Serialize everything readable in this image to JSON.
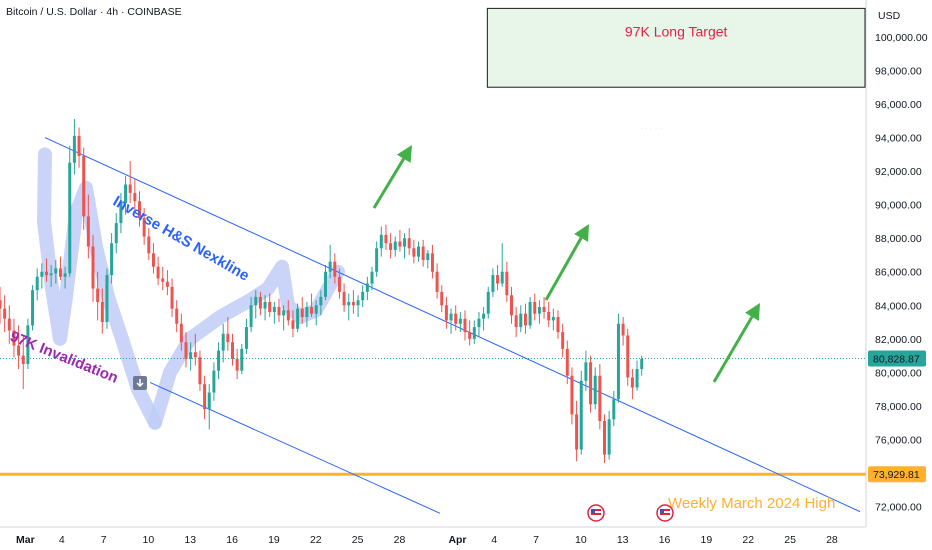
{
  "header": {
    "title": "Bitcoin / U.S. Dollar · 4h · COINBASE",
    "currency": "USD"
  },
  "price_badges": {
    "current": {
      "label": "80,828.87",
      "color": "#26a69a"
    },
    "support": {
      "label": "73,929.81",
      "color": "#ffb02e"
    }
  },
  "annotations": {
    "target": "97K Long Target",
    "nexkline": "Inverse H&S Nexkline",
    "invalidation": "97K Invalidation",
    "weekly": "Weekly March 2024 High"
  },
  "colors": {
    "up": "#26a69a",
    "down": "#ef5350",
    "trendline": "#2962ff",
    "support": "#ffb02e",
    "arrow": "#43b049",
    "target": "#e91e43",
    "nexkline": "#2962ff",
    "invalidation": "#9c27b0"
  },
  "icons": [
    "flag-icon",
    "flag-icon"
  ],
  "chart_data": {
    "type": "candlestick",
    "yaxis": {
      "ticks": [
        "100,000.00",
        "98,000.00",
        "96,000.00",
        "94,000.00",
        "92,000.00",
        "90,000.00",
        "88,000.00",
        "86,000.00",
        "84,000.00",
        "82,000.00",
        "80,000.00",
        "78,000.00",
        "76,000.00",
        "74,000.00",
        "72,000.00"
      ],
      "values": [
        100000,
        98000,
        96000,
        94000,
        92000,
        90000,
        88000,
        86000,
        84000,
        82000,
        80000,
        78000,
        76000,
        74000,
        72000
      ],
      "range": [
        71200,
        102200
      ]
    },
    "xaxis": {
      "ticks": [
        "Mar",
        "4",
        "7",
        "10",
        "13",
        "16",
        "19",
        "22",
        "25",
        "28",
        "Apr",
        "4",
        "7",
        "10",
        "13",
        "16",
        "19",
        "22",
        "25",
        "28"
      ],
      "bold": [
        "Mar",
        "Apr"
      ],
      "range": [
        "2025-03-01",
        "2025-04-29"
      ]
    },
    "current_price": 80828.87,
    "support_price": 73929.81,
    "target_zone": {
      "from_date": "2025-04-03",
      "to_date": "2025-04-30",
      "low": 97000,
      "high": 101700
    },
    "series": [
      {
        "o": 84300,
        "h": 85100,
        "l": 82900,
        "c": 83800
      },
      {
        "o": 83800,
        "h": 84600,
        "l": 82400,
        "c": 83200
      },
      {
        "o": 83200,
        "h": 84000,
        "l": 81700,
        "c": 82500
      },
      {
        "o": 82500,
        "h": 83200,
        "l": 80900,
        "c": 81600
      },
      {
        "o": 81600,
        "h": 82800,
        "l": 80200,
        "c": 81000
      },
      {
        "o": 81000,
        "h": 82200,
        "l": 79000,
        "c": 80500
      },
      {
        "o": 80500,
        "h": 83200,
        "l": 80200,
        "c": 82800
      },
      {
        "o": 82800,
        "h": 85200,
        "l": 82500,
        "c": 84900
      },
      {
        "o": 84900,
        "h": 86200,
        "l": 84300,
        "c": 85700
      },
      {
        "o": 85700,
        "h": 86500,
        "l": 85000,
        "c": 86000
      },
      {
        "o": 86000,
        "h": 86800,
        "l": 85400,
        "c": 85800
      },
      {
        "o": 85800,
        "h": 86400,
        "l": 85100,
        "c": 85900
      },
      {
        "o": 85900,
        "h": 86700,
        "l": 85300,
        "c": 86200
      },
      {
        "o": 86200,
        "h": 86900,
        "l": 85500,
        "c": 85700
      },
      {
        "o": 85700,
        "h": 86300,
        "l": 85000,
        "c": 85900
      },
      {
        "o": 85900,
        "h": 93500,
        "l": 85700,
        "c": 92500
      },
      {
        "o": 92500,
        "h": 95100,
        "l": 91800,
        "c": 94100
      },
      {
        "o": 94100,
        "h": 94600,
        "l": 92200,
        "c": 92900
      },
      {
        "o": 92900,
        "h": 93400,
        "l": 88500,
        "c": 89300
      },
      {
        "o": 89300,
        "h": 90600,
        "l": 86800,
        "c": 87500
      },
      {
        "o": 87500,
        "h": 88200,
        "l": 84200,
        "c": 85000
      },
      {
        "o": 85000,
        "h": 86000,
        "l": 83100,
        "c": 84200
      },
      {
        "o": 84200,
        "h": 85000,
        "l": 82300,
        "c": 83000
      },
      {
        "o": 83000,
        "h": 86200,
        "l": 82600,
        "c": 85800
      },
      {
        "o": 85800,
        "h": 88300,
        "l": 85300,
        "c": 87700
      },
      {
        "o": 87700,
        "h": 89500,
        "l": 87100,
        "c": 88900
      },
      {
        "o": 88900,
        "h": 90700,
        "l": 88300,
        "c": 90100
      },
      {
        "o": 90100,
        "h": 91700,
        "l": 89400,
        "c": 91200
      },
      {
        "o": 91200,
        "h": 92600,
        "l": 90100,
        "c": 90700
      },
      {
        "o": 90700,
        "h": 91500,
        "l": 89500,
        "c": 90200
      },
      {
        "o": 90200,
        "h": 90800,
        "l": 88700,
        "c": 89200
      },
      {
        "o": 89200,
        "h": 89800,
        "l": 87600,
        "c": 88100
      },
      {
        "o": 88100,
        "h": 88600,
        "l": 86700,
        "c": 87100
      },
      {
        "o": 87100,
        "h": 87700,
        "l": 85900,
        "c": 86300
      },
      {
        "o": 86300,
        "h": 86900,
        "l": 85200,
        "c": 85600
      },
      {
        "o": 85600,
        "h": 86300,
        "l": 84900,
        "c": 85400
      },
      {
        "o": 85400,
        "h": 86100,
        "l": 84600,
        "c": 85100
      },
      {
        "o": 85100,
        "h": 85600,
        "l": 83300,
        "c": 83800
      },
      {
        "o": 83800,
        "h": 84300,
        "l": 82400,
        "c": 82900
      },
      {
        "o": 82900,
        "h": 83500,
        "l": 81300,
        "c": 81800
      },
      {
        "o": 81800,
        "h": 82400,
        "l": 80300,
        "c": 80800
      },
      {
        "o": 80800,
        "h": 81800,
        "l": 80100,
        "c": 81200
      },
      {
        "o": 81200,
        "h": 82300,
        "l": 80400,
        "c": 80900
      },
      {
        "o": 80900,
        "h": 81300,
        "l": 78900,
        "c": 79300
      },
      {
        "o": 79300,
        "h": 79800,
        "l": 77200,
        "c": 77800
      },
      {
        "o": 77800,
        "h": 79300,
        "l": 76600,
        "c": 78800
      },
      {
        "o": 78800,
        "h": 80600,
        "l": 78300,
        "c": 80100
      },
      {
        "o": 80100,
        "h": 81800,
        "l": 79600,
        "c": 81300
      },
      {
        "o": 81300,
        "h": 82900,
        "l": 80600,
        "c": 82300
      },
      {
        "o": 82300,
        "h": 83300,
        "l": 81300,
        "c": 81800
      },
      {
        "o": 81800,
        "h": 82300,
        "l": 80400,
        "c": 80800
      },
      {
        "o": 80800,
        "h": 81400,
        "l": 79600,
        "c": 80100
      },
      {
        "o": 80100,
        "h": 81700,
        "l": 79900,
        "c": 81400
      },
      {
        "o": 81400,
        "h": 83200,
        "l": 81100,
        "c": 82700
      },
      {
        "o": 82700,
        "h": 84500,
        "l": 82400,
        "c": 84000
      },
      {
        "o": 84000,
        "h": 84900,
        "l": 83200,
        "c": 84500
      },
      {
        "o": 84500,
        "h": 84800,
        "l": 83400,
        "c": 83800
      },
      {
        "o": 83800,
        "h": 84600,
        "l": 83100,
        "c": 84200
      },
      {
        "o": 84200,
        "h": 84700,
        "l": 83300,
        "c": 83600
      },
      {
        "o": 83600,
        "h": 84200,
        "l": 82900,
        "c": 83900
      },
      {
        "o": 83900,
        "h": 84400,
        "l": 83000,
        "c": 83400
      },
      {
        "o": 83400,
        "h": 84000,
        "l": 82500,
        "c": 83700
      },
      {
        "o": 83700,
        "h": 84300,
        "l": 82800,
        "c": 83100
      },
      {
        "o": 83100,
        "h": 83700,
        "l": 82100,
        "c": 82600
      },
      {
        "o": 82600,
        "h": 84100,
        "l": 82400,
        "c": 83800
      },
      {
        "o": 83800,
        "h": 84500,
        "l": 82900,
        "c": 83300
      },
      {
        "o": 83300,
        "h": 84200,
        "l": 82700,
        "c": 83900
      },
      {
        "o": 83900,
        "h": 84700,
        "l": 83300,
        "c": 83500
      },
      {
        "o": 83500,
        "h": 84300,
        "l": 82800,
        "c": 84000
      },
      {
        "o": 84000,
        "h": 84900,
        "l": 83400,
        "c": 84500
      },
      {
        "o": 84500,
        "h": 86400,
        "l": 84300,
        "c": 86000
      },
      {
        "o": 86000,
        "h": 87600,
        "l": 85600,
        "c": 86600
      },
      {
        "o": 86600,
        "h": 87100,
        "l": 85300,
        "c": 85700
      },
      {
        "o": 85700,
        "h": 86200,
        "l": 84400,
        "c": 84800
      },
      {
        "o": 84800,
        "h": 85300,
        "l": 83600,
        "c": 84000
      },
      {
        "o": 84000,
        "h": 84700,
        "l": 83100,
        "c": 84200
      },
      {
        "o": 84200,
        "h": 84900,
        "l": 83500,
        "c": 84000
      },
      {
        "o": 84000,
        "h": 84600,
        "l": 83300,
        "c": 84300
      },
      {
        "o": 84300,
        "h": 85200,
        "l": 83900,
        "c": 84800
      },
      {
        "o": 84800,
        "h": 85700,
        "l": 84300,
        "c": 85300
      },
      {
        "o": 85300,
        "h": 86300,
        "l": 84900,
        "c": 86000
      },
      {
        "o": 86000,
        "h": 87800,
        "l": 85700,
        "c": 87400
      },
      {
        "o": 87400,
        "h": 88700,
        "l": 86900,
        "c": 88200
      },
      {
        "o": 88200,
        "h": 88800,
        "l": 87300,
        "c": 87700
      },
      {
        "o": 87700,
        "h": 88300,
        "l": 86800,
        "c": 87300
      },
      {
        "o": 87300,
        "h": 88100,
        "l": 86900,
        "c": 87800
      },
      {
        "o": 87800,
        "h": 88500,
        "l": 87200,
        "c": 87500
      },
      {
        "o": 87500,
        "h": 88300,
        "l": 86800,
        "c": 88000
      },
      {
        "o": 88000,
        "h": 88600,
        "l": 87000,
        "c": 87400
      },
      {
        "o": 87400,
        "h": 87900,
        "l": 86500,
        "c": 86900
      },
      {
        "o": 86900,
        "h": 87800,
        "l": 86600,
        "c": 87500
      },
      {
        "o": 87500,
        "h": 87900,
        "l": 86300,
        "c": 86700
      },
      {
        "o": 86700,
        "h": 87300,
        "l": 86200,
        "c": 87100
      },
      {
        "o": 87100,
        "h": 87600,
        "l": 85600,
        "c": 86000
      },
      {
        "o": 86000,
        "h": 86500,
        "l": 84400,
        "c": 84800
      },
      {
        "o": 84800,
        "h": 85200,
        "l": 83600,
        "c": 84000
      },
      {
        "o": 84000,
        "h": 84500,
        "l": 82600,
        "c": 83100
      },
      {
        "o": 83100,
        "h": 83800,
        "l": 82300,
        "c": 83500
      },
      {
        "o": 83500,
        "h": 84000,
        "l": 82500,
        "c": 82900
      },
      {
        "o": 82900,
        "h": 83600,
        "l": 82400,
        "c": 83200
      },
      {
        "o": 83200,
        "h": 83700,
        "l": 81900,
        "c": 82400
      },
      {
        "o": 82400,
        "h": 83100,
        "l": 81600,
        "c": 82000
      },
      {
        "o": 82000,
        "h": 83100,
        "l": 81700,
        "c": 82700
      },
      {
        "o": 82700,
        "h": 83600,
        "l": 82100,
        "c": 83200
      },
      {
        "o": 83200,
        "h": 83900,
        "l": 82500,
        "c": 83500
      },
      {
        "o": 83500,
        "h": 85100,
        "l": 83200,
        "c": 84800
      },
      {
        "o": 84800,
        "h": 86200,
        "l": 84500,
        "c": 85800
      },
      {
        "o": 85800,
        "h": 86400,
        "l": 84900,
        "c": 85300
      },
      {
        "o": 85300,
        "h": 87700,
        "l": 85100,
        "c": 86000
      },
      {
        "o": 86000,
        "h": 86600,
        "l": 84200,
        "c": 84600
      },
      {
        "o": 84600,
        "h": 85100,
        "l": 82900,
        "c": 83400
      },
      {
        "o": 83400,
        "h": 83900,
        "l": 82100,
        "c": 82700
      },
      {
        "o": 82700,
        "h": 84000,
        "l": 82400,
        "c": 83500
      },
      {
        "o": 83500,
        "h": 84100,
        "l": 82300,
        "c": 82800
      },
      {
        "o": 82800,
        "h": 84500,
        "l": 82600,
        "c": 84200
      },
      {
        "o": 84200,
        "h": 84700,
        "l": 83100,
        "c": 83500
      },
      {
        "o": 83500,
        "h": 84300,
        "l": 82900,
        "c": 83900
      },
      {
        "o": 83900,
        "h": 84500,
        "l": 83200,
        "c": 83600
      },
      {
        "o": 83600,
        "h": 84200,
        "l": 82700,
        "c": 83100
      },
      {
        "o": 83100,
        "h": 83800,
        "l": 82500,
        "c": 83300
      },
      {
        "o": 83300,
        "h": 83700,
        "l": 82000,
        "c": 82400
      },
      {
        "o": 82400,
        "h": 82900,
        "l": 80900,
        "c": 81400
      },
      {
        "o": 81400,
        "h": 81900,
        "l": 79300,
        "c": 79800
      },
      {
        "o": 79800,
        "h": 80300,
        "l": 76900,
        "c": 77500
      },
      {
        "o": 77500,
        "h": 78300,
        "l": 74700,
        "c": 75400
      },
      {
        "o": 75400,
        "h": 80100,
        "l": 75100,
        "c": 79500
      },
      {
        "o": 79500,
        "h": 81300,
        "l": 78900,
        "c": 80600
      },
      {
        "o": 80600,
        "h": 81000,
        "l": 77600,
        "c": 78100
      },
      {
        "o": 78100,
        "h": 80300,
        "l": 77800,
        "c": 79800
      },
      {
        "o": 79800,
        "h": 80500,
        "l": 76600,
        "c": 77100
      },
      {
        "o": 77100,
        "h": 77500,
        "l": 74600,
        "c": 75100
      },
      {
        "o": 75100,
        "h": 77700,
        "l": 74800,
        "c": 77200
      },
      {
        "o": 77200,
        "h": 78900,
        "l": 76800,
        "c": 78400
      },
      {
        "o": 78400,
        "h": 83500,
        "l": 78200,
        "c": 82900
      },
      {
        "o": 82900,
        "h": 83300,
        "l": 81600,
        "c": 82200
      },
      {
        "o": 82200,
        "h": 82600,
        "l": 79200,
        "c": 79700
      },
      {
        "o": 79700,
        "h": 80200,
        "l": 78400,
        "c": 79100
      },
      {
        "o": 79100,
        "h": 80700,
        "l": 78900,
        "c": 80200
      },
      {
        "o": 80200,
        "h": 81000,
        "l": 79800,
        "c": 80800
      }
    ]
  }
}
